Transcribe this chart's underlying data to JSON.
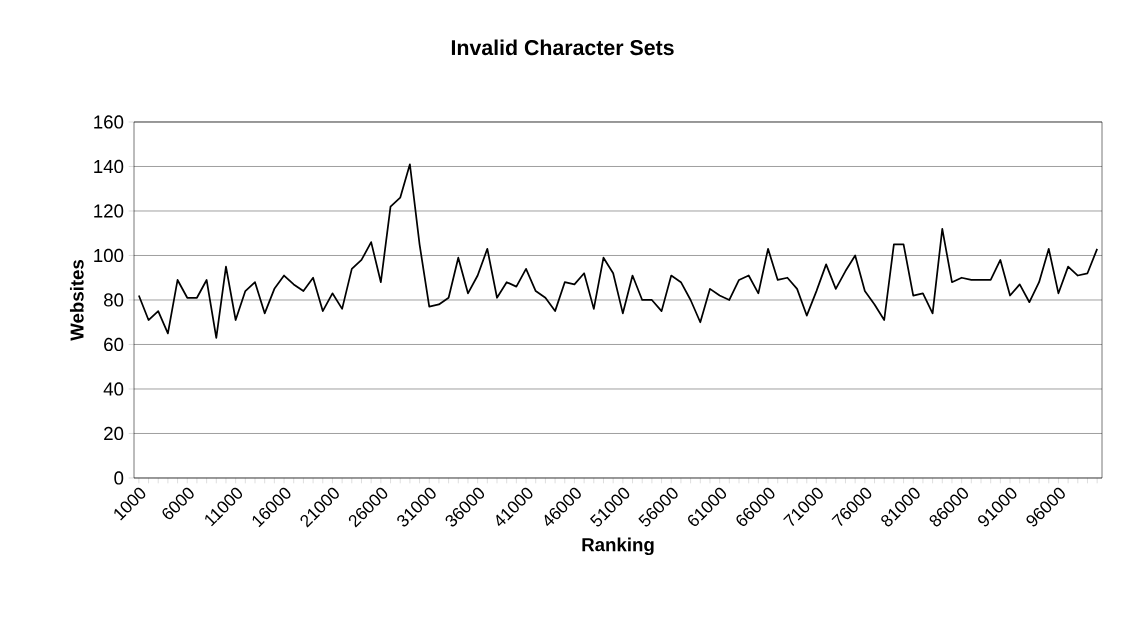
{
  "chart_data": {
    "type": "line",
    "title": "Invalid Character Sets",
    "xlabel": "Ranking",
    "ylabel": "Websites",
    "categories": [
      "1000",
      null,
      null,
      null,
      null,
      "6000",
      null,
      null,
      null,
      null,
      "11000",
      null,
      null,
      null,
      null,
      "16000",
      null,
      null,
      null,
      null,
      "21000",
      null,
      null,
      null,
      null,
      "26000",
      null,
      null,
      null,
      null,
      "31000",
      null,
      null,
      null,
      null,
      "36000",
      null,
      null,
      null,
      null,
      "41000",
      null,
      null,
      null,
      null,
      "46000",
      null,
      null,
      null,
      null,
      "51000",
      null,
      null,
      null,
      null,
      "56000",
      null,
      null,
      null,
      null,
      "61000",
      null,
      null,
      null,
      null,
      "66000",
      null,
      null,
      null,
      null,
      "71000",
      null,
      null,
      null,
      null,
      "76000",
      null,
      null,
      null,
      null,
      "81000",
      null,
      null,
      null,
      null,
      "86000",
      null,
      null,
      null,
      null,
      "91000",
      null,
      null,
      null,
      null,
      "96000",
      null,
      null,
      null,
      null
    ],
    "series": [
      {
        "color": "#000000",
        "values": [
          82,
          71,
          75,
          65,
          89,
          81,
          81,
          89,
          63,
          95,
          71,
          84,
          88,
          74,
          85,
          91,
          87,
          84,
          90,
          75,
          83,
          76,
          94,
          98,
          106,
          88,
          122,
          126,
          141,
          105,
          77,
          78,
          81,
          99,
          83,
          91,
          103,
          81,
          88,
          86,
          94,
          84,
          81,
          75,
          88,
          87,
          92,
          76,
          99,
          92,
          74,
          91,
          80,
          80,
          75,
          91,
          88,
          80,
          70,
          85,
          82,
          80,
          89,
          91,
          83,
          103,
          89,
          90,
          85,
          73,
          84,
          96,
          85,
          93,
          100,
          84,
          78,
          71,
          105,
          105,
          82,
          83,
          74,
          112,
          88,
          90,
          89,
          89,
          89,
          98,
          82,
          87,
          79,
          88,
          103,
          83,
          95,
          91,
          92,
          103
        ]
      }
    ],
    "ylim": [
      0,
      160
    ],
    "yticks": [
      0,
      20,
      40,
      60,
      80,
      100,
      120,
      140,
      160
    ],
    "grid": "y",
    "marker": "none",
    "line_style": "solid"
  }
}
